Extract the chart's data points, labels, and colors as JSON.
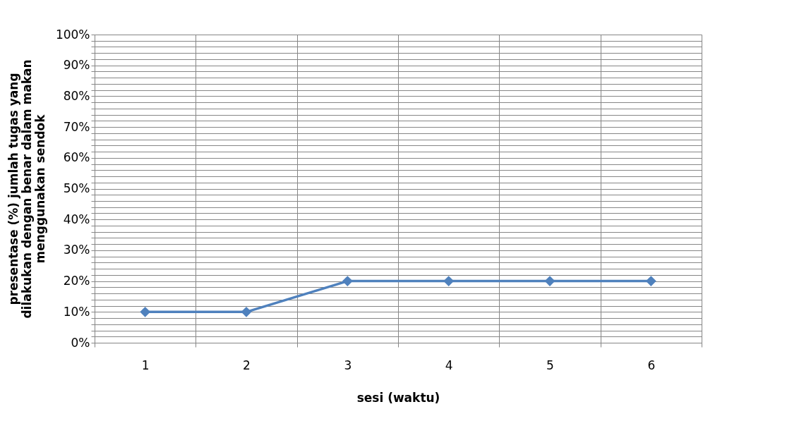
{
  "chart_data": {
    "type": "line",
    "xlabel": "sesi (waktu)",
    "ylabel": "presentase (%) jumlah tugas yang dilakukan dengan benar dalam makan menggunakan sendok",
    "categories": [
      "1",
      "2",
      "3",
      "4",
      "5",
      "6"
    ],
    "series": [
      {
        "color": "#4f81bd",
        "values": [
          10,
          10,
          20,
          20,
          20,
          20
        ]
      }
    ],
    "ylim": [
      0,
      100
    ],
    "yticks": [
      {
        "value": 0,
        "label": "0%"
      },
      {
        "value": 2,
        "label": null
      },
      {
        "value": 4,
        "label": null
      },
      {
        "value": 6,
        "label": null
      },
      {
        "value": 8,
        "label": null
      },
      {
        "value": 10,
        "label": "10%"
      },
      {
        "value": 12,
        "label": null
      },
      {
        "value": 14,
        "label": null
      },
      {
        "value": 16,
        "label": null
      },
      {
        "value": 18,
        "label": null
      },
      {
        "value": 20,
        "label": "20%"
      },
      {
        "value": 22,
        "label": null
      },
      {
        "value": 24,
        "label": null
      },
      {
        "value": 26,
        "label": null
      },
      {
        "value": 28,
        "label": null
      },
      {
        "value": 30,
        "label": "30%"
      },
      {
        "value": 32,
        "label": null
      },
      {
        "value": 34,
        "label": null
      },
      {
        "value": 36,
        "label": null
      },
      {
        "value": 38,
        "label": null
      },
      {
        "value": 40,
        "label": "40%"
      },
      {
        "value": 42,
        "label": null
      },
      {
        "value": 44,
        "label": null
      },
      {
        "value": 46,
        "label": null
      },
      {
        "value": 48,
        "label": null
      },
      {
        "value": 50,
        "label": "50%"
      },
      {
        "value": 52,
        "label": null
      },
      {
        "value": 54,
        "label": null
      },
      {
        "value": 56,
        "label": null
      },
      {
        "value": 58,
        "label": null
      },
      {
        "value": 60,
        "label": "60%"
      },
      {
        "value": 62,
        "label": null
      },
      {
        "value": 64,
        "label": null
      },
      {
        "value": 66,
        "label": null
      },
      {
        "value": 68,
        "label": null
      },
      {
        "value": 70,
        "label": "70%"
      },
      {
        "value": 72,
        "label": null
      },
      {
        "value": 74,
        "label": null
      },
      {
        "value": 76,
        "label": null
      },
      {
        "value": 78,
        "label": null
      },
      {
        "value": 80,
        "label": "80%"
      },
      {
        "value": 82,
        "label": null
      },
      {
        "value": 84,
        "label": null
      },
      {
        "value": 86,
        "label": null
      },
      {
        "value": 88,
        "label": null
      },
      {
        "value": 90,
        "label": "90%"
      },
      {
        "value": 92,
        "label": null
      },
      {
        "value": 94,
        "label": null
      },
      {
        "value": 96,
        "label": null
      },
      {
        "value": 98,
        "label": null
      },
      {
        "value": 100,
        "label": "100%"
      }
    ],
    "grid": true,
    "marker": "diamond",
    "line_style": "solid"
  }
}
